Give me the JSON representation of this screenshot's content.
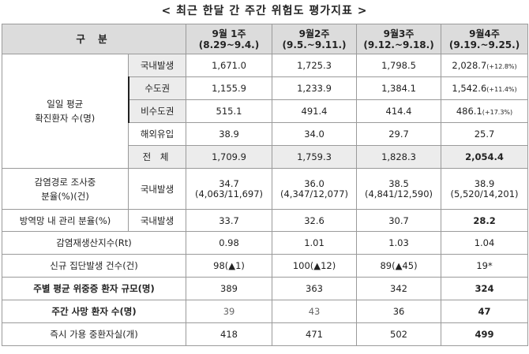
{
  "title": "< 최근 한달 간 주간 위험도 평가지표 >",
  "header": {
    "category": "구 분",
    "weeks": [
      {
        "name": "9월 1주",
        "range": "(8.29~9.4.)"
      },
      {
        "name": "9월2주",
        "range": "(9.5.~9.11.)"
      },
      {
        "name": "9월3주",
        "range": "(9.12.~9.18.)"
      },
      {
        "name": "9월4주",
        "range": "(9.19.~9.25.)"
      }
    ]
  },
  "daily_avg": {
    "label_line1": "일일 평균",
    "label_line2": "확진환자 수(명)",
    "rows": [
      {
        "label": "국내발생",
        "values": [
          "1,671.0",
          "1,725.3",
          "1,798.5",
          "2,028.7"
        ],
        "note": "(+12.8%)"
      },
      {
        "label": "수도권",
        "values": [
          "1,155.9",
          "1,233.9",
          "1,384.1",
          "1,542.6"
        ],
        "note": "(+11.4%)"
      },
      {
        "label": "비수도권",
        "values": [
          "515.1",
          "491.4",
          "414.4",
          "486.1"
        ],
        "note": "(+17.3%)"
      },
      {
        "label": "해외유입",
        "values": [
          "38.9",
          "34.0",
          "29.7",
          "25.7"
        ],
        "note": ""
      },
      {
        "label": "전 체",
        "values": [
          "1,709.9",
          "1,759.3",
          "1,828.3",
          "2,054.4"
        ],
        "note": ""
      }
    ]
  },
  "investigating": {
    "label_line1": "감염경로 조사중",
    "label_line2": "분율(%)(건)",
    "sublabel": "국내발생",
    "values": [
      {
        "pct": "34.7",
        "count": "(4,063/11,697)"
      },
      {
        "pct": "36.0",
        "count": "(4,347/12,077)"
      },
      {
        "pct": "38.5",
        "count": "(4,841/12,590)"
      },
      {
        "pct": "38.9",
        "count": "(5,520/14,201)"
      }
    ]
  },
  "managed": {
    "label": "방역망 내 관리 분율(%)",
    "sublabel": "국내발생",
    "values": [
      "33.7",
      "32.6",
      "30.7",
      "28.2"
    ]
  },
  "rt": {
    "label": "감염재생산지수(Rt)",
    "values": [
      "0.98",
      "1.01",
      "1.03",
      "1.04"
    ]
  },
  "clusters": {
    "label": "신규 집단발생 건수(건)",
    "values": [
      "98(▲1)",
      "100(▲12)",
      "89(▲45)",
      "19*"
    ]
  },
  "severe": {
    "label": "주별 평균 위중증 환자 규모(명)",
    "values": [
      "389",
      "363",
      "342",
      "324"
    ]
  },
  "deaths": {
    "label": "주간 사망 환자 수(명)",
    "values": [
      "39",
      "43",
      "36",
      "47"
    ]
  },
  "icu": {
    "label": "즉시 가용 중환자실(개)",
    "values": [
      "418",
      "471",
      "502",
      "499"
    ]
  }
}
